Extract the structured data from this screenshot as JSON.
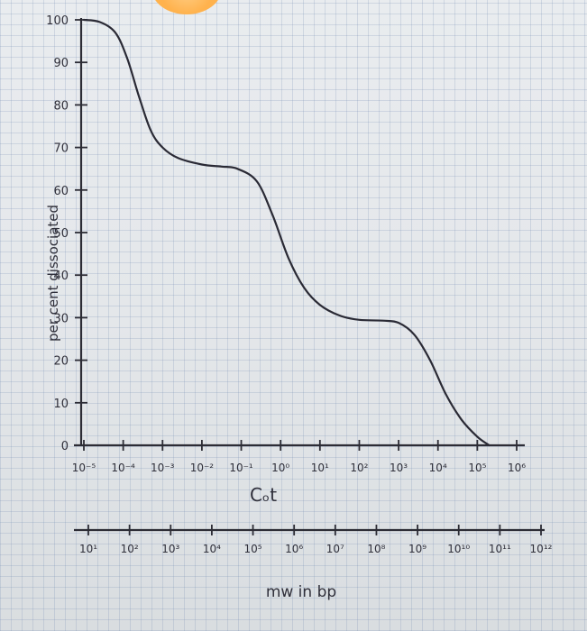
{
  "chart_data": {
    "type": "line",
    "xlabel": "Cₒt",
    "ylabel": "per cent dissociated",
    "secondary_xlabel": "mw in bp",
    "y_ticks": [
      "0",
      "10",
      "20",
      "30",
      "40",
      "50",
      "60",
      "70",
      "80",
      "90",
      "100"
    ],
    "x_ticks": [
      "10⁻⁵",
      "10⁻⁴",
      "10⁻³",
      "10⁻²",
      "10⁻¹",
      "10⁰",
      "10¹",
      "10²",
      "10³",
      "10⁴",
      "10⁵",
      "10⁶"
    ],
    "secondary_x_ticks": [
      "10¹",
      "10²",
      "10³",
      "10⁴",
      "10⁵",
      "10⁶",
      "10⁷",
      "10⁸",
      "10⁹",
      "10¹⁰",
      "10¹¹",
      "10¹²"
    ],
    "xscale": "log10",
    "xlim_exponent": [
      -5,
      6
    ],
    "ylim": [
      0,
      100
    ],
    "grid": true,
    "series": [
      {
        "points": [
          [
            -5.0,
            100
          ],
          [
            -4.6,
            99.5
          ],
          [
            -4.2,
            97
          ],
          [
            -3.9,
            91
          ],
          [
            -3.6,
            82
          ],
          [
            -3.3,
            74
          ],
          [
            -3.0,
            70
          ],
          [
            -2.6,
            67.5
          ],
          [
            -2.0,
            66
          ],
          [
            -1.5,
            65.5
          ],
          [
            -1.1,
            65
          ],
          [
            -0.6,
            62
          ],
          [
            -0.2,
            54
          ],
          [
            0.2,
            44
          ],
          [
            0.6,
            37
          ],
          [
            1.0,
            33
          ],
          [
            1.5,
            30.5
          ],
          [
            2.0,
            29.5
          ],
          [
            2.6,
            29.3
          ],
          [
            3.0,
            28.8
          ],
          [
            3.4,
            26
          ],
          [
            3.8,
            20
          ],
          [
            4.2,
            12
          ],
          [
            4.6,
            6
          ],
          [
            5.0,
            2
          ],
          [
            5.3,
            0
          ]
        ]
      }
    ]
  }
}
